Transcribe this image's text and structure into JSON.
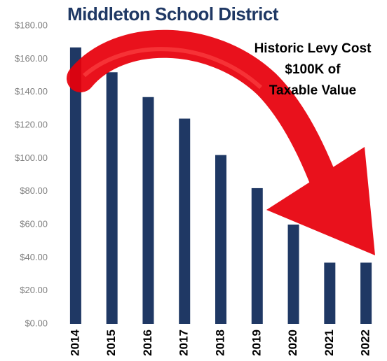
{
  "chart_data": {
    "type": "bar",
    "title": "Middleton School District",
    "annotation": [
      "Historic Levy Cost",
      "$100K of",
      "Taxable Value"
    ],
    "categories": [
      "2014",
      "2015",
      "2016",
      "2017",
      "2018",
      "2019",
      "2020",
      "2021",
      "2022"
    ],
    "values": [
      167,
      152,
      137,
      124,
      102,
      82,
      60,
      37,
      37
    ],
    "color": "#1f3864",
    "ylim": [
      0,
      180
    ],
    "yticks": [
      {
        "value": 0,
        "label": "$0.00"
      },
      {
        "value": 20,
        "label": "$20.00"
      },
      {
        "value": 40,
        "label": "$40.00"
      },
      {
        "value": 60,
        "label": "$60.00"
      },
      {
        "value": 80,
        "label": "$80.00"
      },
      {
        "value": 100,
        "label": "$100.00"
      },
      {
        "value": 120,
        "label": "$120.00"
      },
      {
        "value": 140,
        "label": "$140.00"
      },
      {
        "value": 160,
        "label": "$160.00"
      },
      {
        "value": 180,
        "label": "$180.00"
      }
    ]
  }
}
